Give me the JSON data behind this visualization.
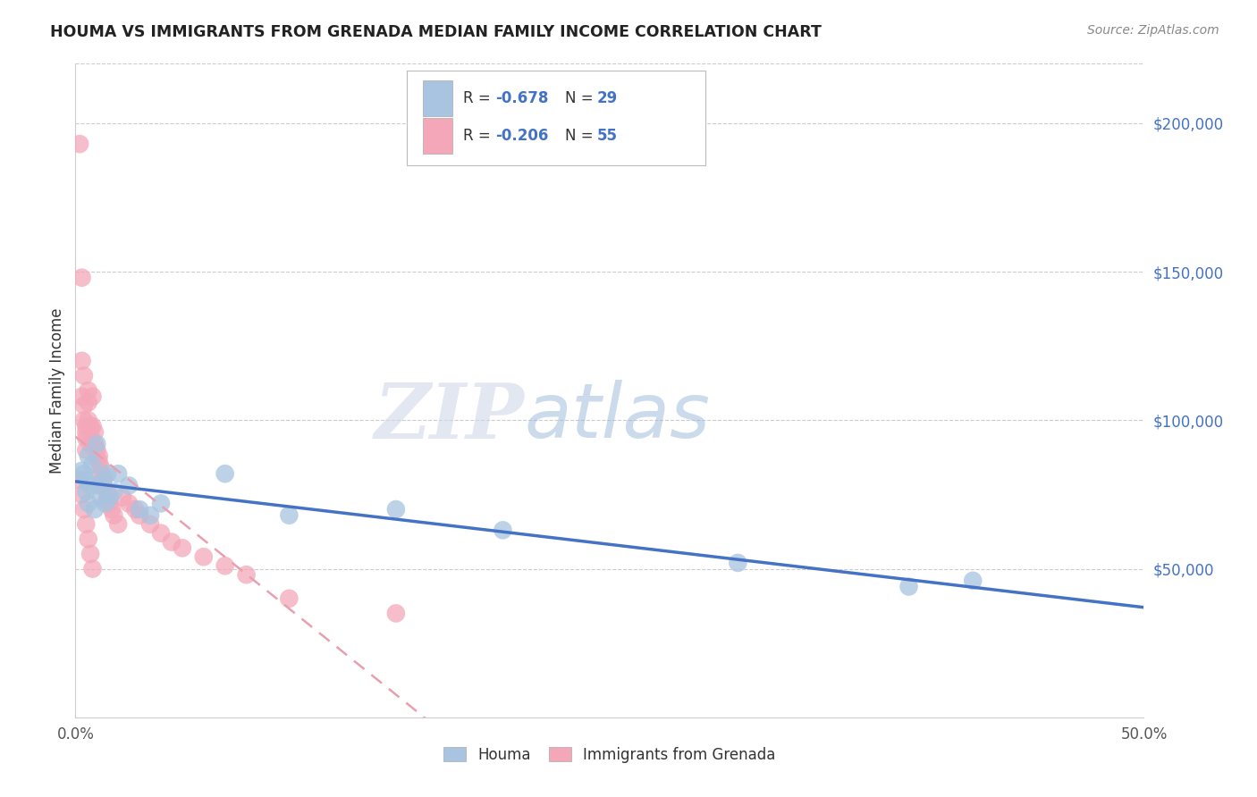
{
  "title": "HOUMA VS IMMIGRANTS FROM GRENADA MEDIAN FAMILY INCOME CORRELATION CHART",
  "source": "Source: ZipAtlas.com",
  "ylabel": "Median Family Income",
  "xlim": [
    0.0,
    0.5
  ],
  "ylim": [
    0,
    220000
  ],
  "xticks": [
    0.0,
    0.1,
    0.2,
    0.3,
    0.4,
    0.5
  ],
  "xticklabels": [
    "0.0%",
    "",
    "",
    "",
    "",
    "50.0%"
  ],
  "ytick_labels_right": [
    "$50,000",
    "$100,000",
    "$150,000",
    "$200,000"
  ],
  "ytick_values_right": [
    50000,
    100000,
    150000,
    200000
  ],
  "legend_r1": "-0.678",
  "legend_n1": "29",
  "legend_r2": "-0.206",
  "legend_n2": "55",
  "houma_color": "#a8c4e0",
  "grenada_color": "#f4a7b9",
  "houma_line_color": "#4472c4",
  "grenada_line_color": "#e8a0b0",
  "watermark_zip": "ZIP",
  "watermark_atlas": "atlas",
  "houma_x": [
    0.003,
    0.004,
    0.005,
    0.005,
    0.006,
    0.006,
    0.007,
    0.008,
    0.009,
    0.01,
    0.011,
    0.012,
    0.013,
    0.014,
    0.015,
    0.016,
    0.018,
    0.02,
    0.025,
    0.03,
    0.035,
    0.04,
    0.07,
    0.1,
    0.15,
    0.2,
    0.31,
    0.39,
    0.42
  ],
  "houma_y": [
    83000,
    82000,
    80000,
    76000,
    88000,
    72000,
    78000,
    85000,
    70000,
    92000,
    78000,
    74000,
    80000,
    72000,
    82000,
    74000,
    76000,
    82000,
    78000,
    70000,
    68000,
    72000,
    82000,
    68000,
    70000,
    63000,
    52000,
    44000,
    46000
  ],
  "grenada_x": [
    0.002,
    0.003,
    0.003,
    0.003,
    0.004,
    0.004,
    0.004,
    0.005,
    0.005,
    0.005,
    0.005,
    0.006,
    0.006,
    0.006,
    0.007,
    0.007,
    0.007,
    0.008,
    0.008,
    0.009,
    0.009,
    0.01,
    0.01,
    0.011,
    0.011,
    0.012,
    0.012,
    0.013,
    0.013,
    0.015,
    0.015,
    0.016,
    0.017,
    0.018,
    0.02,
    0.022,
    0.025,
    0.028,
    0.03,
    0.035,
    0.04,
    0.045,
    0.05,
    0.06,
    0.07,
    0.08,
    0.002,
    0.003,
    0.004,
    0.005,
    0.006,
    0.007,
    0.008,
    0.1,
    0.15
  ],
  "grenada_y": [
    193000,
    148000,
    120000,
    108000,
    115000,
    105000,
    100000,
    98000,
    96000,
    94000,
    90000,
    110000,
    106000,
    100000,
    98000,
    95000,
    92000,
    108000,
    98000,
    96000,
    92000,
    90000,
    87000,
    88000,
    86000,
    84000,
    82000,
    80000,
    78000,
    76000,
    74000,
    72000,
    70000,
    68000,
    65000,
    74000,
    72000,
    70000,
    68000,
    65000,
    62000,
    59000,
    57000,
    54000,
    51000,
    48000,
    80000,
    75000,
    70000,
    65000,
    60000,
    55000,
    50000,
    40000,
    35000
  ]
}
